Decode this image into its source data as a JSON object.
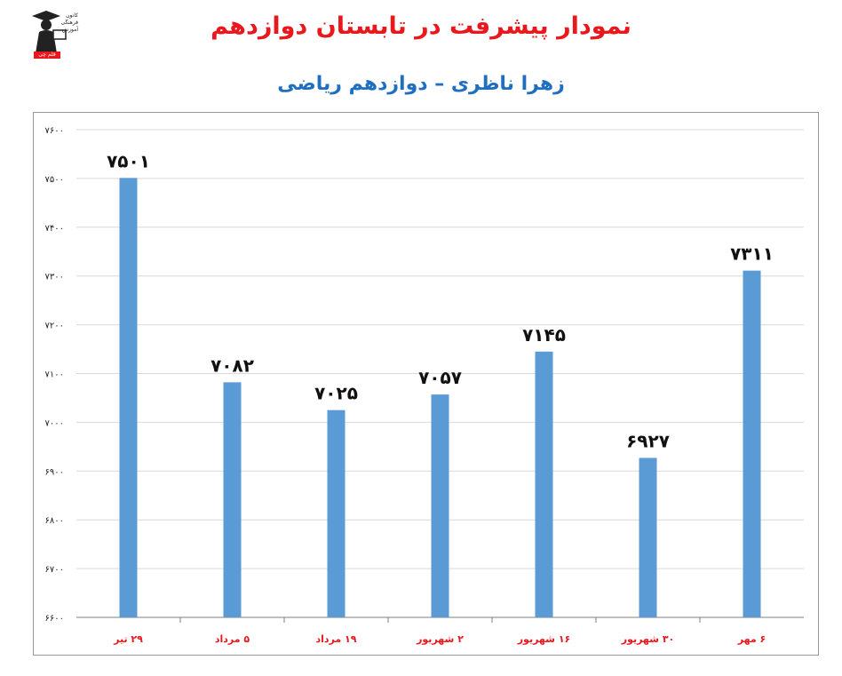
{
  "page": {
    "title": "نمودار پیشرفت در تابستان دوازدهم",
    "subtitle": "زهرا ناظری – دوازدهم ریاضی",
    "logo": {
      "icon": "graduate-figure-icon",
      "text": "کانون فرهنگی آموزش",
      "badge": "قلم چی"
    }
  },
  "colors": {
    "bar": "#5b9bd5",
    "title": "#e8181c",
    "subtitle": "#1f6fc0",
    "grid": "#d9d9d9"
  },
  "chart_data": {
    "type": "bar",
    "categories": [
      "۲۹ تیر",
      "۵ مرداد",
      "۱۹ مرداد",
      "۲ شهریور",
      "۱۶ شهریور",
      "۳۰ شهریور",
      "۶ مهر"
    ],
    "values": [
      7501,
      7082,
      7025,
      7057,
      7145,
      6927,
      7311
    ],
    "value_labels": [
      "۷۵۰۱",
      "۷۰۸۲",
      "۷۰۲۵",
      "۷۰۵۷",
      "۷۱۴۵",
      "۶۹۲۷",
      "۷۳۱۱"
    ],
    "ylim": [
      6600,
      7600
    ],
    "y_ticks": [
      6600,
      6700,
      6800,
      6900,
      7000,
      7100,
      7200,
      7300,
      7400,
      7500,
      7600
    ],
    "y_tick_labels": [
      "۶۶۰۰",
      "۶۷۰۰",
      "۶۸۰۰",
      "۶۹۰۰",
      "۷۰۰۰",
      "۷۱۰۰",
      "۷۲۰۰",
      "۷۳۰۰",
      "۷۴۰۰",
      "۷۵۰۰",
      "۷۶۰۰"
    ],
    "grid": true,
    "legend": "none"
  }
}
